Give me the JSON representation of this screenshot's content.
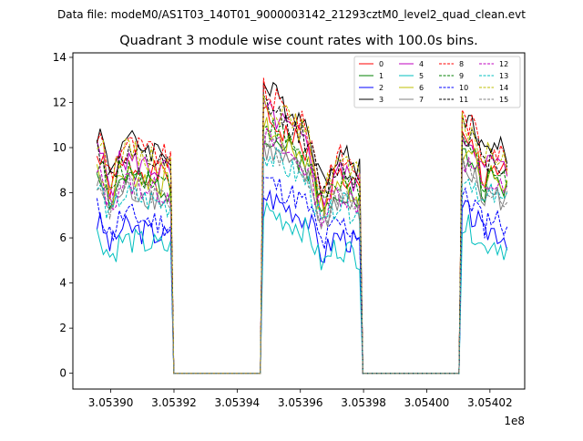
{
  "chart_data": {
    "type": "line",
    "suptitle": "Data file: modeM0/AS1T03_140T01_9000003142_21293cztM0_level2_quad_clean.evt",
    "title": "Quadrant 3 module wise count rates with 100.0s bins.",
    "xlabel": "",
    "ylabel": "",
    "x_offset_label": "1e8",
    "xlim": [
      3.053888,
      3.054031
    ],
    "ylim": [
      -0.7,
      14.2
    ],
    "x_ticks": [
      3.0539,
      3.05392,
      3.05394,
      3.05396,
      3.05398,
      3.054,
      3.05402
    ],
    "x_tick_labels": [
      "3.05390",
      "3.05392",
      "3.05394",
      "3.05396",
      "3.05398",
      "3.05400",
      "3.05402"
    ],
    "y_ticks": [
      0,
      2,
      4,
      6,
      8,
      10,
      12,
      14
    ],
    "y_tick_labels": [
      "0",
      "2",
      "4",
      "6",
      "8",
      "10",
      "12",
      "14"
    ],
    "grid": false,
    "legend_position": "top-right",
    "legend_columns": 4,
    "segments": [
      {
        "start": 3.0538955,
        "end": 3.0539196,
        "base_start": 9.6,
        "base_end": 8.6,
        "dip_at": 3.0539,
        "dip_depth": 1.3
      },
      {
        "start": 3.053948,
        "end": 3.0539796,
        "base_start": 11.4,
        "base_end": 8.0,
        "dip_at": 3.053967,
        "dip_depth": 1.8
      },
      {
        "start": 3.0540112,
        "end": 3.0540255,
        "base_start": 10.3,
        "base_end": 8.6,
        "dip_at": 3.054018,
        "dip_depth": 0.9
      }
    ],
    "zero_value": 0,
    "series": [
      {
        "name": "0",
        "color": "#ff0000",
        "dash": "solid",
        "level": 1.0
      },
      {
        "name": "1",
        "color": "#008000",
        "dash": "solid",
        "level": 0.94
      },
      {
        "name": "2",
        "color": "#0000ff",
        "dash": "solid",
        "level": 0.7
      },
      {
        "name": "3",
        "color": "#000000",
        "dash": "solid",
        "level": 1.12
      },
      {
        "name": "4",
        "color": "#bf00bf",
        "dash": "solid",
        "level": 1.03
      },
      {
        "name": "5",
        "color": "#00bfbf",
        "dash": "solid",
        "level": 0.64
      },
      {
        "name": "6",
        "color": "#bfbf00",
        "dash": "solid",
        "level": 0.96
      },
      {
        "name": "7",
        "color": "#808080",
        "dash": "solid",
        "level": 0.88
      },
      {
        "name": "8",
        "color": "#ff0000",
        "dash": "dashed",
        "level": 1.1
      },
      {
        "name": "9",
        "color": "#008000",
        "dash": "dashed",
        "level": 0.98
      },
      {
        "name": "10",
        "color": "#0000ff",
        "dash": "dashed",
        "level": 0.76
      },
      {
        "name": "11",
        "color": "#000000",
        "dash": "dashed",
        "level": 1.05
      },
      {
        "name": "12",
        "color": "#bf00bf",
        "dash": "dashed",
        "level": 0.92
      },
      {
        "name": "13",
        "color": "#00bfbf",
        "dash": "dashed",
        "level": 0.86
      },
      {
        "name": "14",
        "color": "#bfbf00",
        "dash": "dashed",
        "level": 1.07
      },
      {
        "name": "15",
        "color": "#808080",
        "dash": "dashed",
        "level": 0.9
      }
    ]
  }
}
